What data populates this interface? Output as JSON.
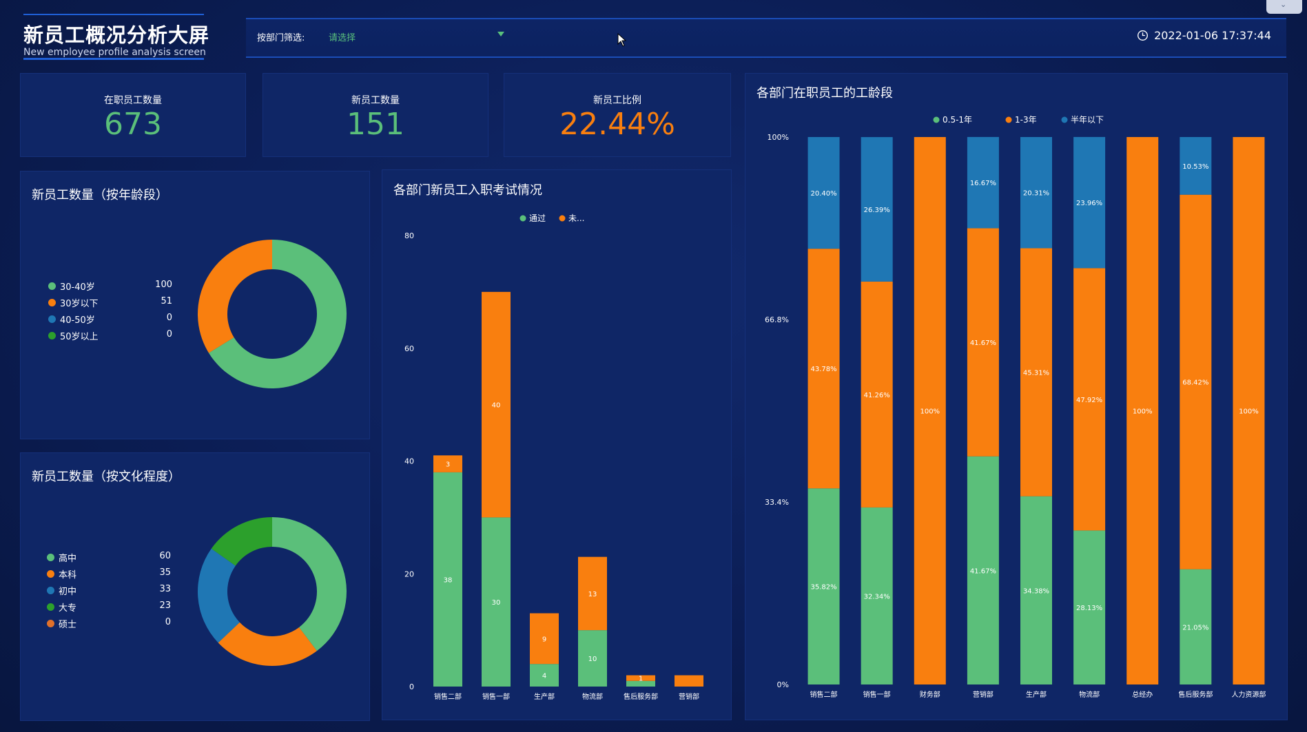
{
  "header": {
    "title": "新员工概况分析大屏",
    "subtitle": "New employee profile analysis screen",
    "filter_label": "按部门筛选:",
    "filter_value": "请选择",
    "datetime": "2022-01-06 17:37:44"
  },
  "colors": {
    "green": "#5bbf7a",
    "orange": "#f97f0f",
    "blue": "#1f77b4",
    "dark_green": "#2ca02c",
    "brown_orange": "#e0702a",
    "teal_value": "#5bbf7a"
  },
  "kpis": [
    {
      "label": "在职员工数量",
      "value": "673",
      "color": "#5bbf7a"
    },
    {
      "label": "新员工数量",
      "value": "151",
      "color": "#5bbf7a"
    },
    {
      "label": "新员工比例",
      "value": "22.44%",
      "color": "#f97f0f"
    }
  ],
  "age_panel": {
    "title": "新员工数量（按年龄段）",
    "legend": [
      {
        "name": "30-40岁",
        "value": "100",
        "color": "#5bbf7a"
      },
      {
        "name": "30岁以下",
        "value": "51",
        "color": "#f97f0f"
      },
      {
        "name": "40-50岁",
        "value": "0",
        "color": "#1f77b4"
      },
      {
        "name": "50岁以上",
        "value": "0",
        "color": "#2ca02c"
      }
    ]
  },
  "edu_panel": {
    "title": "新员工数量（按文化程度）",
    "legend": [
      {
        "name": "高中",
        "value": "60",
        "color": "#5bbf7a"
      },
      {
        "name": "本科",
        "value": "35",
        "color": "#f97f0f"
      },
      {
        "name": "初中",
        "value": "33",
        "color": "#1f77b4"
      },
      {
        "name": "大专",
        "value": "23",
        "color": "#2ca02c"
      },
      {
        "name": "硕士",
        "value": "0",
        "color": "#e0702a"
      }
    ]
  },
  "exam_panel": {
    "title": "各部门新员工入职考试情况"
  },
  "tenure_panel": {
    "title": "各部门在职员工的工龄段"
  },
  "chart_data": [
    {
      "type": "pie",
      "title": "新员工数量（按年龄段）",
      "categories": [
        "30-40岁",
        "30岁以下",
        "40-50岁",
        "50岁以上"
      ],
      "values": [
        100,
        51,
        0,
        0
      ]
    },
    {
      "type": "pie",
      "title": "新员工数量（按文化程度）",
      "categories": [
        "高中",
        "本科",
        "初中",
        "大专",
        "硕士"
      ],
      "values": [
        60,
        35,
        33,
        23,
        0
      ]
    },
    {
      "type": "bar",
      "stacked": true,
      "title": "各部门新员工入职考试情况",
      "categories": [
        "销售二部",
        "销售一部",
        "生产部",
        "物流部",
        "售后服务部",
        "营销部"
      ],
      "series": [
        {
          "name": "通过",
          "values": [
            38,
            30,
            4,
            10,
            1,
            0
          ],
          "labels": [
            "38",
            "30",
            "4",
            "10",
            "",
            ""
          ],
          "color": "#5bbf7a"
        },
        {
          "name": "未...",
          "values": [
            3,
            40,
            9,
            13,
            1,
            2
          ],
          "labels": [
            "3",
            "40",
            "9",
            "13",
            "1",
            ""
          ],
          "color": "#f97f0f"
        }
      ],
      "ylim": [
        0,
        80
      ],
      "yticks": [
        "0",
        "20",
        "40",
        "60",
        "80"
      ],
      "legend": "top-center",
      "grid": false
    },
    {
      "type": "bar",
      "stacked": true,
      "percent": true,
      "title": "各部门在职员工的工龄段",
      "categories": [
        "销售二部",
        "销售一部",
        "财务部",
        "营销部",
        "生产部",
        "物流部",
        "总经办",
        "售后服务部",
        "人力资源部"
      ],
      "series": [
        {
          "name": "0.5-1年",
          "values": [
            35.82,
            32.34,
            0,
            41.67,
            34.38,
            28.13,
            0,
            21.05,
            0
          ],
          "labels": [
            "35.82%",
            "32.34%",
            "",
            "41.67%",
            "34.38%",
            "28.13%",
            "",
            "21.05%",
            ""
          ],
          "color": "#5bbf7a"
        },
        {
          "name": "1-3年",
          "values": [
            43.78,
            41.26,
            100,
            41.67,
            45.31,
            47.92,
            100,
            68.42,
            100
          ],
          "labels": [
            "43.78%",
            "41.26%",
            "100%",
            "41.67%",
            "45.31%",
            "47.92%",
            "100%",
            "68.42%",
            "100%"
          ],
          "color": "#f97f0f"
        },
        {
          "name": "半年以下",
          "values": [
            20.4,
            26.39,
            0,
            16.67,
            20.31,
            23.96,
            0,
            10.53,
            0
          ],
          "labels": [
            "20.40%",
            "26.39%",
            "",
            "16.67%",
            "20.31%",
            "23.96%",
            "",
            "10.53%",
            ""
          ],
          "color": "#1f77b4"
        }
      ],
      "ylim": [
        0,
        100
      ],
      "yticks": [
        "0%",
        "33.4%",
        "66.8%",
        "100%"
      ],
      "legend": "top-center",
      "grid": false
    }
  ]
}
